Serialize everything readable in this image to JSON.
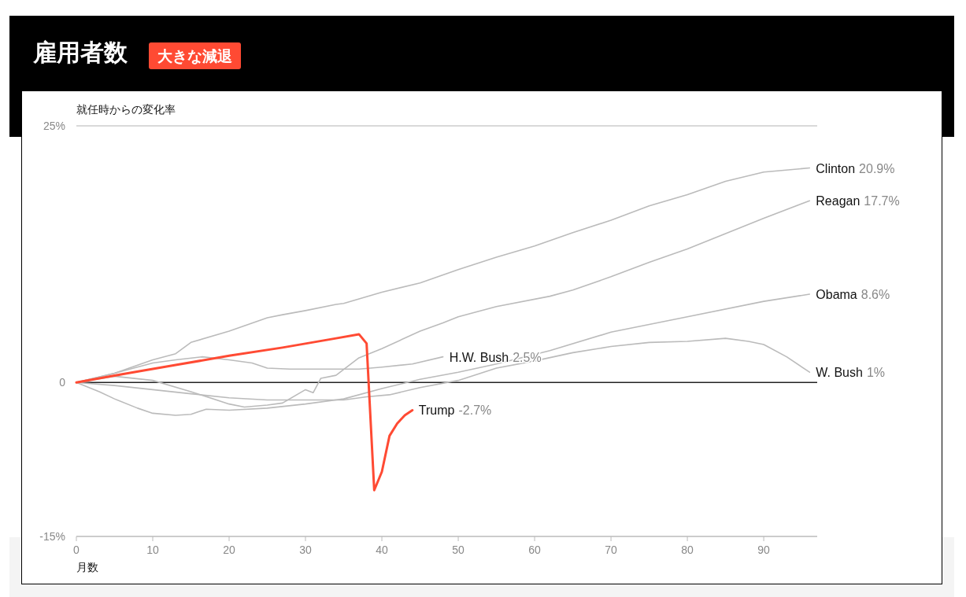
{
  "chart_data": {
    "type": "line",
    "title": "雇用者数",
    "subtitle": "大きな減退",
    "ylabel": "就任時からの変化率",
    "xlabel": "月数",
    "xlim": [
      0,
      97
    ],
    "xticks": [
      0,
      10,
      20,
      30,
      40,
      50,
      60,
      70,
      80,
      90
    ],
    "ylim": [
      -15,
      25
    ],
    "yticks": [
      {
        "value": 25,
        "label": "25%"
      },
      0,
      {
        "value": -15,
        "label": "-15%"
      }
    ],
    "ref_lines": [
      {
        "axis": "y",
        "value": 25,
        "color": "#cccccc"
      },
      {
        "axis": "y",
        "value": 0,
        "color": "#222222"
      }
    ],
    "annotations": [
      "20.9%",
      "17.7%",
      "8.6%",
      "1%",
      "2.5%",
      "-2.7%"
    ],
    "series": [
      {
        "name": "Clinton",
        "color": "#bbbbbb",
        "x": [
          0,
          5,
          10,
          13,
          15,
          20,
          25,
          27,
          30,
          34,
          35,
          40,
          45,
          50,
          55,
          60,
          65,
          70,
          75,
          80,
          85,
          90,
          96
        ],
        "values": [
          0,
          0.9,
          2.2,
          2.8,
          3.9,
          5.0,
          6.3,
          6.6,
          7.0,
          7.6,
          7.7,
          8.8,
          9.7,
          11.0,
          12.2,
          13.3,
          14.6,
          15.8,
          17.2,
          18.3,
          19.6,
          20.5,
          20.9
        ]
      },
      {
        "name": "Reagan",
        "color": "#bbbbbb",
        "x": [
          0,
          5,
          10,
          15,
          20,
          22,
          25,
          27,
          30,
          31,
          32,
          34,
          37,
          40,
          45,
          48,
          50,
          55,
          62,
          65,
          70,
          75,
          80,
          85,
          90,
          96
        ],
        "values": [
          0,
          0.6,
          0.2,
          -0.9,
          -2.1,
          -2.4,
          -2.2,
          -2.0,
          -0.7,
          -1.0,
          0.4,
          0.7,
          2.4,
          3.3,
          5.0,
          5.8,
          6.4,
          7.4,
          8.4,
          9.0,
          10.3,
          11.7,
          13.0,
          14.5,
          16.0,
          17.7
        ]
      },
      {
        "name": "Obama",
        "color": "#bbbbbb",
        "x": [
          0,
          3,
          5,
          8,
          10,
          13,
          15,
          17,
          20,
          25,
          30,
          35,
          40,
          45,
          50,
          55,
          62,
          70,
          80,
          90,
          96
        ],
        "values": [
          0,
          -0.9,
          -1.6,
          -2.5,
          -3.0,
          -3.2,
          -3.1,
          -2.6,
          -2.7,
          -2.5,
          -2.1,
          -1.6,
          -0.6,
          0.3,
          1.0,
          1.8,
          3.1,
          4.9,
          6.4,
          7.9,
          8.6
        ]
      },
      {
        "name": "W. Bush",
        "color": "#bbbbbb",
        "x": [
          0,
          5,
          10,
          15,
          20,
          25,
          30,
          35,
          38,
          41,
          45,
          50,
          55,
          60,
          65,
          70,
          75,
          80,
          85,
          88,
          90,
          93,
          96
        ],
        "values": [
          0,
          -0.3,
          -0.7,
          -1.1,
          -1.5,
          -1.7,
          -1.7,
          -1.7,
          -1.4,
          -1.2,
          -0.5,
          0.2,
          1.4,
          2.1,
          2.9,
          3.5,
          3.9,
          4.0,
          4.3,
          4.0,
          3.7,
          2.5,
          1.0
        ]
      },
      {
        "name": "H.W. Bush",
        "color": "#bbbbbb",
        "x": [
          0,
          5,
          10,
          13,
          16.5,
          20,
          23,
          25,
          28,
          30,
          34,
          37,
          40,
          44,
          48
        ],
        "values": [
          0,
          0.9,
          1.9,
          2.2,
          2.5,
          2.2,
          1.9,
          1.4,
          1.3,
          1.3,
          1.3,
          1.3,
          1.5,
          1.8,
          2.5
        ]
      },
      {
        "name": "Trump",
        "color": "#ff4a33",
        "x": [
          0,
          6,
          13,
          20,
          27,
          34,
          37,
          38,
          39,
          40,
          41,
          42,
          43,
          44
        ],
        "values": [
          0,
          0.8,
          1.7,
          2.6,
          3.4,
          4.3,
          4.7,
          3.8,
          -10.5,
          -8.7,
          -5.2,
          -4.0,
          -3.2,
          -2.7
        ]
      }
    ]
  }
}
